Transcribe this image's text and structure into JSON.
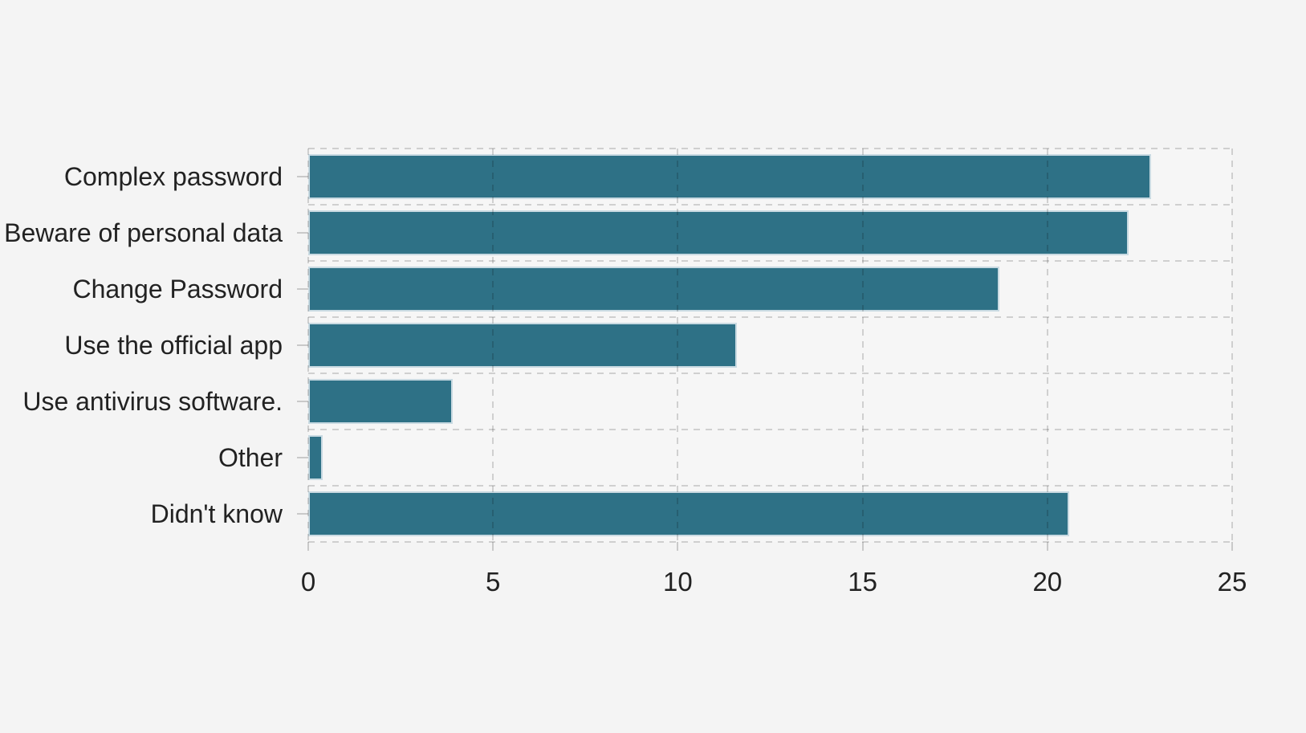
{
  "chart_data": {
    "type": "bar",
    "orientation": "horizontal",
    "title": "",
    "xlabel": "",
    "ylabel": "",
    "categories": [
      "Complex password",
      "Beware of personal data",
      "Change Password",
      "Use the official app",
      "Use antivirus software.",
      "Other",
      "Didn't know"
    ],
    "values": [
      22.8,
      22.2,
      18.7,
      11.6,
      3.9,
      0.4,
      20.6
    ],
    "xlim": [
      0,
      25
    ],
    "xticks": [
      0,
      5,
      10,
      15,
      20,
      25
    ],
    "grid": "dashed-horizontal-and-vertical",
    "legend": "none",
    "colors": {
      "bar_fill": "#2e7186",
      "bar_border": "#c9dae2",
      "grid": "#cccccc",
      "tick": "#c9c9c9",
      "text": "#222222",
      "background": "#f4f4f4",
      "plot_background": "#f6f6f6"
    }
  }
}
